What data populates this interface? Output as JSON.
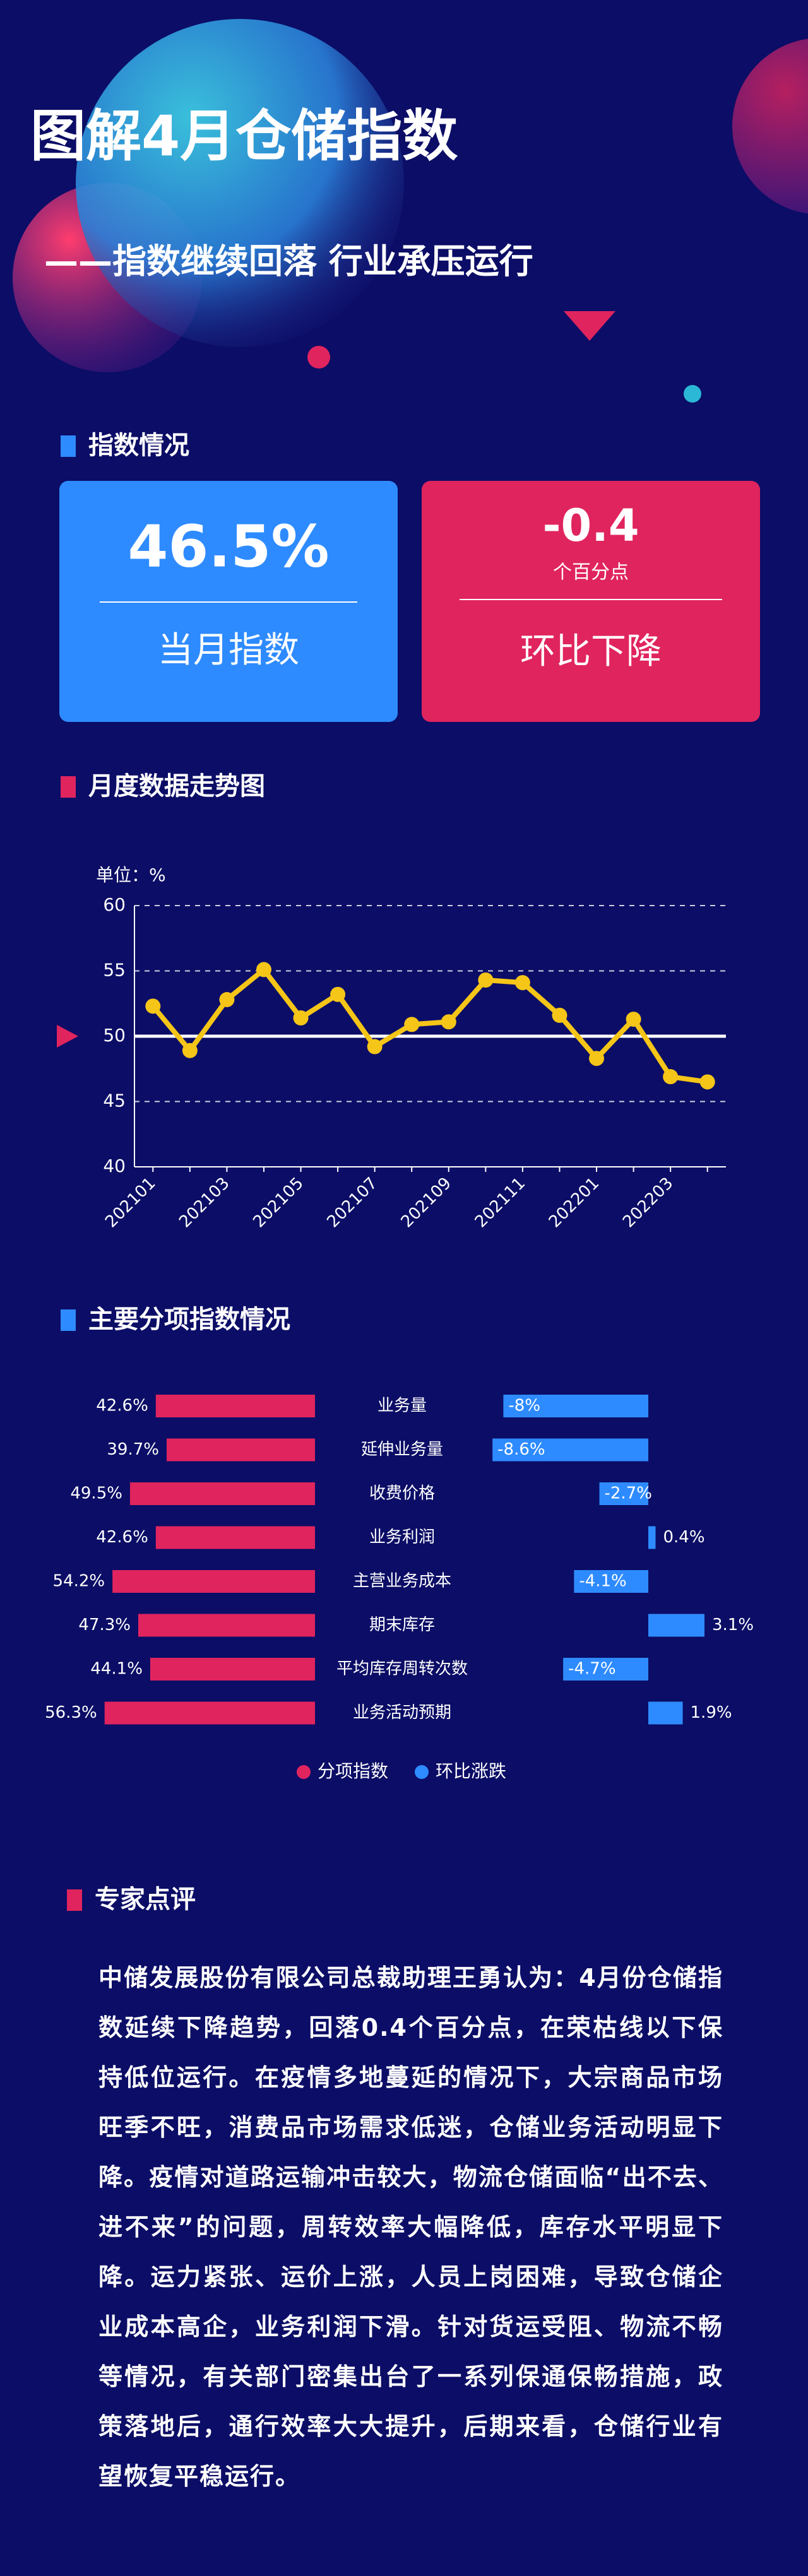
{
  "header": {
    "title": "图解4月仓储指数",
    "subtitle": "——指数继续回落 行业承压运行"
  },
  "index_section": {
    "heading": "指数情况",
    "cards": [
      {
        "value": "46.5%",
        "label": "当月指数"
      },
      {
        "value": "-0.4",
        "unit": "个百分点",
        "label": "环比下降"
      }
    ]
  },
  "chart_data": [
    {
      "type": "line",
      "title": "月度数据走势图",
      "y_unit_label": "单位：%",
      "categories": [
        "202101",
        null,
        "202103",
        null,
        "202105",
        null,
        "202107",
        null,
        "202109",
        null,
        "202111",
        null,
        "202201",
        null,
        "202203",
        null
      ],
      "values": [
        52.3,
        48.9,
        52.8,
        55.1,
        51.4,
        53.2,
        49.2,
        50.9,
        51.1,
        54.3,
        54.1,
        51.6,
        48.3,
        51.3,
        46.9,
        46.5
      ],
      "color": "#f5c518",
      "ylim": [
        40,
        60
      ],
      "yticks": [
        40,
        45,
        50,
        55,
        60
      ],
      "grid": true,
      "reference_line": 50
    },
    {
      "type": "bar",
      "title": "主要分项指数情况",
      "categories": [
        "业务量",
        "延伸业务量",
        "收费价格",
        "业务利润",
        "主营业务成本",
        "期末库存",
        "平均库存周转次数",
        "业务活动预期"
      ],
      "series": [
        {
          "name": "分项指数",
          "color": "#e0245e",
          "values": [
            42.6,
            39.7,
            49.5,
            42.6,
            54.2,
            47.3,
            44.1,
            56.3
          ],
          "value_labels": [
            "42.6%",
            "39.7%",
            "49.5%",
            "42.6%",
            "54.2%",
            "47.3%",
            "44.1%",
            "56.3%"
          ]
        },
        {
          "name": "环比涨跌",
          "color": "#2e8bff",
          "values": [
            -8,
            -8.6,
            -2.7,
            0.4,
            -4.1,
            3.1,
            -4.7,
            1.9
          ],
          "value_labels": [
            "-8%",
            "-8.6%",
            "-2.7%",
            "0.4%",
            "-4.1%",
            "3.1%",
            "-4.7%",
            "1.9%"
          ]
        }
      ],
      "legend": "bottom"
    }
  ],
  "commentary": {
    "heading": "专家点评",
    "text": "中储发展股份有限公司总裁助理王勇认为：4月份仓储指数延续下降趋势，回落0.4个百分点，在荣枯线以下保持低位运行。在疫情多地蔓延的情况下，大宗商品市场旺季不旺，消费品市场需求低迷，仓储业务活动明显下降。疫情对道路运输冲击较大，物流仓储面临“出不去、进不来”的问题，周转效率大幅降低，库存水平明显下降。运力紧张、运价上涨，人员上岗困难，导致仓储企业成本高企，业务利润下滑。针对货运受阻、物流不畅等情况，有关部门密集出台了一系列保通保畅措施，政策落地后，通行效率大大提升，后期来看，仓储行业有望恢复平稳运行。"
  }
}
